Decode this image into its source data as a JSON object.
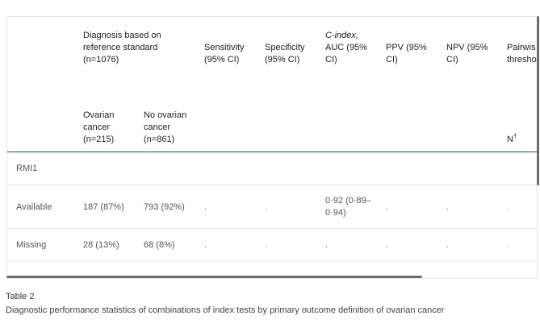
{
  "table": {
    "header": {
      "diagnosis_group": [
        "Diagnosis based on",
        "reference standard",
        "(n=1076)"
      ],
      "sensitivity": [
        "Sensitivity",
        "(95% CI)"
      ],
      "specificity": [
        "Specificity",
        "(95% CI)"
      ],
      "cindex": [
        "C-index,",
        "AUC (95%",
        "CI)"
      ],
      "ppv": [
        "PPV (95%",
        "CI)"
      ],
      "npv": [
        "NPV (95%",
        "CI)"
      ],
      "pairwise": [
        "Pairwis",
        "thresho"
      ],
      "ovarian": [
        "Ovarian",
        "cancer",
        "(n=215)"
      ],
      "no_ovarian": [
        "No ovarian",
        "cancer",
        "(n=861)"
      ],
      "n_label": "N",
      "n_sup": "†"
    },
    "rows": [
      {
        "label": "RMI1"
      },
      {
        "label": "Available",
        "ovarian": "187 (87%)",
        "no_ovarian": "793 (92%)",
        "sensitivity": ".",
        "specificity": ".",
        "cindex": [
          "0·92 (0·89–",
          "0·94)"
        ],
        "ppv": ".",
        "npv": ".",
        "pairwise": "."
      },
      {
        "label": "Missing",
        "ovarian": "28 (13%)",
        "no_ovarian": "68 (8%)",
        "sensitivity": ".",
        "specificity": ".",
        "cindex": ".",
        "ppv": ".",
        "npv": ".",
        "pairwise": "."
      }
    ]
  },
  "caption": {
    "title": "Table 2",
    "text": "Diagnostic performance statistics of combinations of index tests by primary outcome definition of ovarian cancer"
  }
}
